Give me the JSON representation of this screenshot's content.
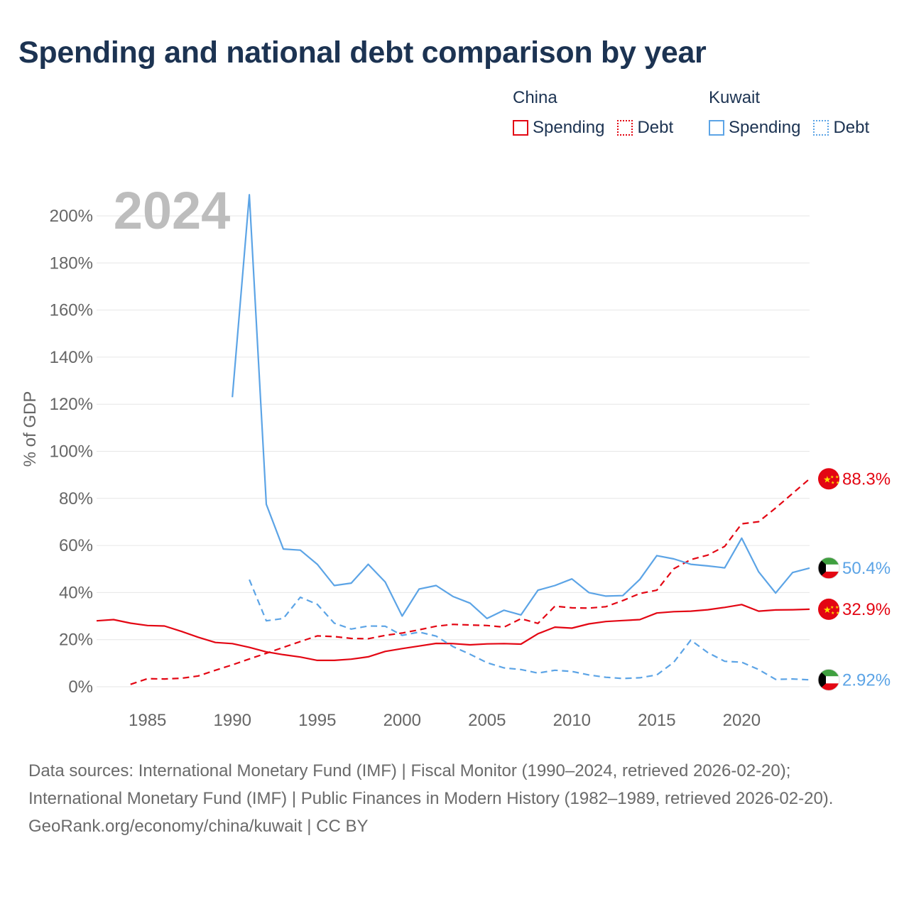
{
  "title": "Spending and national debt comparison by year",
  "legend": {
    "groups": [
      {
        "country": "China",
        "color": "#e30613",
        "items": [
          {
            "label": "Spending",
            "style": "solid"
          },
          {
            "label": "Debt",
            "style": "dotted"
          }
        ]
      },
      {
        "country": "Kuwait",
        "color": "#5ca4e6",
        "items": [
          {
            "label": "Spending",
            "style": "solid"
          },
          {
            "label": "Debt",
            "style": "dotted"
          }
        ]
      }
    ]
  },
  "footer": {
    "sources": "Data sources: International Monetary Fund (IMF) | Fiscal Monitor (1990–2024, retrieved 2026-02-20); International Monetary Fund (IMF) | Public Finances in Modern History (1982–1989, retrieved 2026-02-20).",
    "credit": "GeoRank.org/economy/china/kuwait | CC BY"
  },
  "chart_data": {
    "type": "line",
    "title": "Spending and national debt comparison by year",
    "year_watermark": "2024",
    "ylabel": "% of GDP",
    "xlabel": "",
    "xlim": [
      1982,
      2024
    ],
    "ylim": [
      0,
      210
    ],
    "x_ticks": [
      1985,
      1990,
      1995,
      2000,
      2005,
      2010,
      2015,
      2020
    ],
    "y_ticks": [
      0,
      20,
      40,
      60,
      80,
      100,
      120,
      140,
      160,
      180,
      200
    ],
    "y_tick_labels": [
      "0%",
      "20%",
      "40%",
      "60%",
      "80%",
      "100%",
      "120%",
      "140%",
      "160%",
      "180%",
      "200%"
    ],
    "grid": true,
    "series": [
      {
        "name": "China Spending",
        "country": "China",
        "kind": "Spending",
        "color": "#e30613",
        "dash": "solid",
        "end_label": "32.9%",
        "x": [
          1982,
          1983,
          1984,
          1985,
          1986,
          1987,
          1988,
          1989,
          1990,
          1991,
          1992,
          1993,
          1994,
          1995,
          1996,
          1997,
          1998,
          1999,
          2000,
          2001,
          2002,
          2003,
          2004,
          2005,
          2006,
          2007,
          2008,
          2009,
          2010,
          2011,
          2012,
          2013,
          2014,
          2015,
          2016,
          2017,
          2018,
          2019,
          2020,
          2021,
          2022,
          2023,
          2024
        ],
        "values": [
          28,
          28.5,
          27,
          26,
          25.8,
          23.5,
          21,
          18.8,
          18.3,
          16.7,
          14.8,
          13.6,
          12.6,
          11.2,
          11.2,
          11.7,
          12.7,
          15,
          16.2,
          17.3,
          18.4,
          18.3,
          17.8,
          18.2,
          18.3,
          18.1,
          22.5,
          25.3,
          24.9,
          26.7,
          27.7,
          28.1,
          28.5,
          31.3,
          31.9,
          32.1,
          32.7,
          33.7,
          34.9,
          32.1,
          32.6,
          32.7,
          32.9
        ]
      },
      {
        "name": "China Debt",
        "country": "China",
        "kind": "Debt",
        "color": "#e30613",
        "dash": "dashed",
        "end_label": "88.3%",
        "x": [
          1984,
          1985,
          1986,
          1987,
          1988,
          1989,
          1990,
          1991,
          1992,
          1993,
          1994,
          1995,
          1996,
          1997,
          1998,
          1999,
          2000,
          2001,
          2002,
          2003,
          2004,
          2005,
          2006,
          2007,
          2008,
          2009,
          2010,
          2011,
          2012,
          2013,
          2014,
          2015,
          2016,
          2017,
          2018,
          2019,
          2020,
          2021,
          2022,
          2023,
          2024
        ],
        "values": [
          1,
          3.4,
          3.3,
          3.6,
          4.6,
          7,
          9.3,
          11.8,
          14.2,
          16.7,
          19.2,
          21.6,
          21.3,
          20.5,
          20.4,
          21.8,
          22.8,
          24.2,
          25.7,
          26.5,
          26.2,
          26,
          25.3,
          28.9,
          26.9,
          34.2,
          33.5,
          33.4,
          34,
          36.6,
          39.6,
          41,
          50.1,
          54,
          55.9,
          59.6,
          69.2,
          70.1,
          75.9,
          82.1,
          88.3
        ]
      },
      {
        "name": "Kuwait Spending",
        "country": "Kuwait",
        "kind": "Spending",
        "color": "#5ca4e6",
        "dash": "solid",
        "end_label": "50.4%",
        "x": [
          1990,
          1991,
          1992,
          1993,
          1994,
          1995,
          1996,
          1997,
          1998,
          1999,
          2000,
          2001,
          2002,
          2003,
          2004,
          2005,
          2006,
          2007,
          2008,
          2009,
          2010,
          2011,
          2012,
          2013,
          2014,
          2015,
          2016,
          2017,
          2018,
          2019,
          2020,
          2021,
          2022,
          2023,
          2024
        ],
        "values": [
          123,
          209,
          77.5,
          58.5,
          58,
          52,
          43,
          44,
          52,
          44.5,
          30,
          41.5,
          43,
          38.3,
          35.5,
          29,
          32.5,
          30.5,
          41,
          43,
          45.8,
          40,
          38.5,
          38.7,
          45.6,
          55.7,
          54.3,
          52,
          51.3,
          50.5,
          63.1,
          48.8,
          39.8,
          48.5,
          50.4
        ]
      },
      {
        "name": "Kuwait Debt",
        "country": "Kuwait",
        "kind": "Debt",
        "color": "#5ca4e6",
        "dash": "dashed",
        "end_label": "2.92%",
        "x": [
          1991,
          1992,
          1993,
          1994,
          1995,
          1996,
          1997,
          1998,
          1999,
          2000,
          2001,
          2002,
          2003,
          2004,
          2005,
          2006,
          2007,
          2008,
          2009,
          2010,
          2011,
          2012,
          2013,
          2014,
          2015,
          2016,
          2017,
          2018,
          2019,
          2020,
          2021,
          2022,
          2023,
          2024
        ],
        "values": [
          45.5,
          28,
          29,
          38,
          35,
          27,
          24.5,
          25.8,
          25.7,
          21.8,
          23.2,
          21.5,
          17,
          13.8,
          10.2,
          8,
          7.3,
          5.8,
          7,
          6.5,
          5,
          4,
          3.5,
          3.8,
          5,
          10.4,
          19.8,
          14.5,
          10.8,
          10.4,
          7.3,
          3.1,
          3.3,
          2.92
        ]
      }
    ]
  }
}
